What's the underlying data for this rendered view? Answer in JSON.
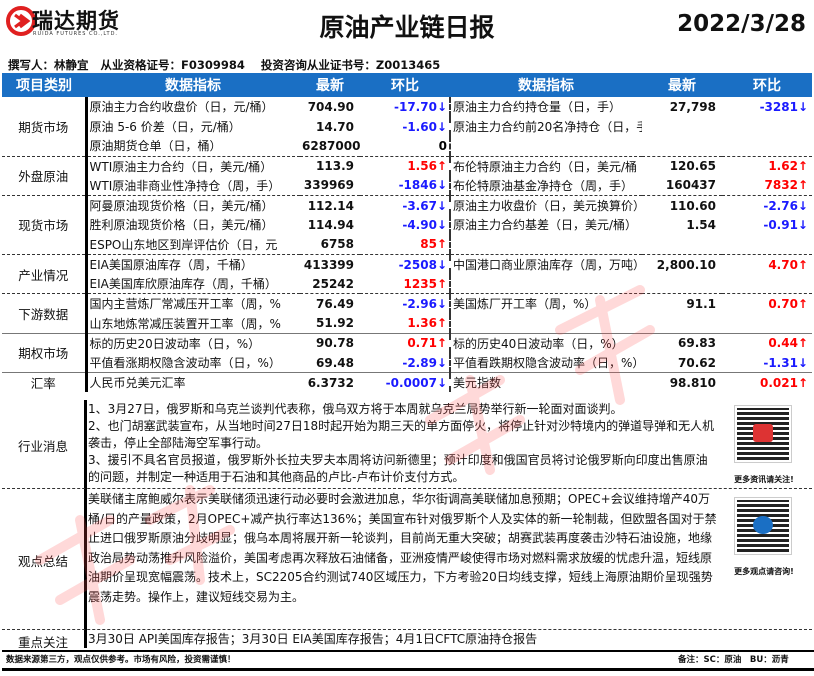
{
  "header": {
    "logo_cn": "瑞达期货",
    "logo_en": "RUIDA FUTURES CO.,LTD.",
    "title": "原油产业链日报",
    "date": "2022/3/28"
  },
  "author_line": "撰写人：林静宜   从业资格证号：F0309984    投资咨询从业证书号：Z0013465",
  "columns": [
    "项目类别",
    "数据指标",
    "最新",
    "环比",
    "数据指标",
    "最新",
    "环比"
  ],
  "rows": [
    {
      "cat": "期货市场",
      "span": 3,
      "l": [
        "原油主力合约收盘价（日，元/桶）",
        "704.90",
        "-17.70↓",
        "dn"
      ],
      "r": [
        "原油主力合约持仓量（日，手）",
        "27,798",
        "-3281↓",
        "dn"
      ]
    },
    {
      "l": [
        "原油 5-6 价差（日，元/桶）",
        "14.70",
        "-1.60↓",
        "dn"
      ],
      "r": [
        "原油主力合约前20名净持仓（日，手）",
        "",
        "",
        ""
      ]
    },
    {
      "l": [
        "原油期货仓单（日，桶）",
        "6287000",
        "0",
        "zero"
      ],
      "r": [
        "",
        "",
        "",
        ""
      ]
    },
    {
      "cat": "外盘原油",
      "span": 2,
      "l": [
        "WTI原油主力合约（日，美元/桶）",
        "113.9",
        "1.56↑",
        "up"
      ],
      "r": [
        "布伦特原油主力合约（日，美元/桶",
        "120.65",
        "1.62↑",
        "up"
      ]
    },
    {
      "l": [
        " WTI原油非商业性净持仓（周，手）",
        "339969",
        "-1846↓",
        "dn"
      ],
      "r": [
        "布伦特原油基金净持仓（周，手）",
        "160437",
        "7832↑",
        "up"
      ]
    },
    {
      "cat": "现货市场",
      "span": 3,
      "l": [
        "阿曼原油现货价格（日，美元/桶）",
        "112.14",
        "-3.67↓",
        "dn"
      ],
      "r": [
        "原油主力收盘价（日，美元换算价）",
        "110.60",
        "-2.76↓",
        "dn"
      ]
    },
    {
      "l": [
        "胜利原油现货价格（日，美元/桶）",
        "114.94",
        "-4.90↓",
        "dn"
      ],
      "r": [
        "原油主力合约基差（日，美元/桶）",
        "1.54",
        "-0.91↓",
        "dn"
      ]
    },
    {
      "l": [
        "ESPO山东地区到岸评估价（日，元",
        "6758",
        "85↑",
        "up"
      ],
      "r": [
        "",
        "",
        "",
        ""
      ]
    },
    {
      "cat": "产业情况",
      "span": 2,
      "l": [
        "EIA美国原油库存（周，千桶）",
        "413399",
        "-2508↓",
        "dn"
      ],
      "r": [
        "中国港口商业原油库存（周，万吨）",
        "2,800.10",
        "4.70↑",
        "up"
      ]
    },
    {
      "l": [
        "EIA美国库欣原油库存（周，千桶）",
        "25242",
        "1235↑",
        "up"
      ],
      "r": [
        "",
        "",
        "",
        ""
      ]
    },
    {
      "cat": "下游数据",
      "span": 2,
      "l": [
        "国内主营炼厂常减压开工率（周，%",
        "76.49",
        "-2.96↓",
        "dn"
      ],
      "r": [
        "美国炼厂开工率（周，%）",
        "91.1",
        "0.70↑",
        "up"
      ]
    },
    {
      "l": [
        "山东地炼常减压装置开工率（周，%",
        "51.92",
        "1.36↑",
        "up"
      ],
      "r": [
        "",
        "",
        "",
        ""
      ]
    },
    {
      "cat": "期权市场",
      "span": 2,
      "l": [
        "标的历史20日波动率（日，%）",
        "90.78",
        "0.71↑",
        "up"
      ],
      "r": [
        "标的历史40日波动率（日，%）",
        "69.83",
        "0.44↑",
        "up"
      ]
    },
    {
      "l": [
        "平值看涨期权隐含波动率（日，%）",
        "69.48",
        "-2.89↓",
        "dn"
      ],
      "r": [
        "平值看跌期权隐含波动率（日，%）",
        "70.62",
        "-1.31↓",
        "dn"
      ]
    },
    {
      "cat": "汇率",
      "span": 1,
      "l": [
        "人民币兑美元汇率",
        "6.3732",
        "-0.0007↓",
        "dn"
      ],
      "r": [
        "美元指数",
        "98.810",
        "0.021↑",
        "up"
      ]
    }
  ],
  "news": {
    "label": "行业消息",
    "lines": [
      "1、3月27日，俄罗斯和乌克兰谈判代表称，俄乌双方将于本周就乌克兰局势举行新一轮面对面谈判。",
      "2、也门胡塞武装宣布，从当地时间27日18时起开始为期三天的单方面停火，将停止针对沙特境内的弹道导弹和无人机袭击，停止全部陆海空军事行动。",
      "3、援引不具名官员报道，俄罗斯外长拉夫罗夫本周将访问新德里；预计印度和俄国官员将讨论俄罗斯向印度出售原油的问题，并制定一种适用于石油和其他商品的卢比-卢布计价支付方式。"
    ],
    "qr_caption": "更多资讯请关注!"
  },
  "view": {
    "label": "观点总结",
    "text": "美联储主席鲍威尔表示美联储须迅速行动必要时会激进加息，华尔街调高美联储加息预期；OPEC+会议维持增产40万桶/日的产量政策，2月OPEC+减产执行率达136%；美国宣布针对俄罗斯个人及实体的新一轮制裁，但欧盟各国对于禁止进口俄罗斯原油分歧明显；俄乌本周将展开新一轮谈判，目前尚无重大突破；胡赛武装再度袭击沙特石油设施，地缘政治局势动荡推升风险溢价，美国考虑再次释放石油储备，亚洲疫情严峻使得市场对燃料需求放缓的忧虑升温，短线原油期价呈现宽幅震荡。技术上，SC2205合约测试740区域压力，下方考验20日均线支撑，短线上海原油期价呈现强势震荡走势。操作上，建议短线交易为主。",
    "qr_caption": "更多观点请咨询!"
  },
  "focus": {
    "label": "重点关注",
    "text": "3月30日 API美国库存报告；3月30日 EIA美国库存报告；4月1日CFTC原油持仓报告"
  },
  "footer": {
    "disclaimer": "数据来源第三方，观点仅供参考。市场有风险，投资需谨慎！",
    "note": "备注：SC：原油　BU：沥青"
  },
  "watermark": "瑞达研究",
  "colors": {
    "header_blue": "#1a6fc4",
    "up": "#ff0000",
    "down": "#1a1aff"
  }
}
